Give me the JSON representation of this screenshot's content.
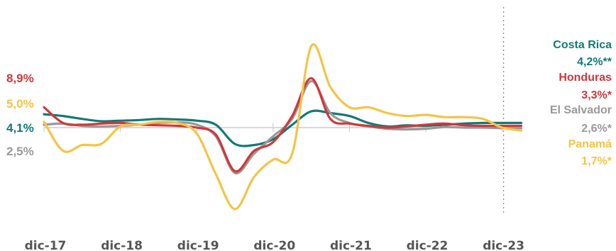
{
  "chart_data": {
    "type": "line",
    "title": "",
    "xlabel": "",
    "ylabel": "",
    "x_ticks": [
      "dic-17",
      "dic-18",
      "dic-19",
      "dic-20",
      "dic-21",
      "dic-22",
      "dic-23"
    ],
    "x_range": [
      "2017-12",
      "2024-03"
    ],
    "ylim": [
      -15,
      15
    ],
    "baseline_y": 0,
    "marker_line_x": "2023-12",
    "grid": false,
    "legend": "end-of-line labels, right",
    "series": [
      {
        "name": "Costa Rica",
        "color": "#127a76",
        "start_value": "4,1%",
        "end_value": "4,2%**",
        "points": [
          [
            "2017-12",
            2.3
          ],
          [
            "2018-03",
            2.0
          ],
          [
            "2018-06",
            1.5
          ],
          [
            "2018-09",
            1.1
          ],
          [
            "2018-12",
            1.2
          ],
          [
            "2019-03",
            1.3
          ],
          [
            "2019-06",
            1.5
          ],
          [
            "2019-09",
            1.4
          ],
          [
            "2019-12",
            1.2
          ],
          [
            "2020-03",
            0.5
          ],
          [
            "2020-06",
            -2.8
          ],
          [
            "2020-09",
            -3.0
          ],
          [
            "2020-12",
            -2.0
          ],
          [
            "2021-03",
            0.5
          ],
          [
            "2021-06",
            2.8
          ],
          [
            "2021-09",
            2.5
          ],
          [
            "2021-12",
            2.0
          ],
          [
            "2022-03",
            0.8
          ],
          [
            "2022-06",
            0.2
          ],
          [
            "2022-09",
            0.4
          ],
          [
            "2022-12",
            0.3
          ],
          [
            "2023-03",
            0.5
          ],
          [
            "2023-06",
            0.7
          ],
          [
            "2023-09",
            0.8
          ],
          [
            "2023-12",
            0.8
          ],
          [
            "2024-03",
            0.8
          ]
        ]
      },
      {
        "name": "Honduras",
        "color": "#d2363b",
        "start_value": "8,9%",
        "end_value": "3,3%*",
        "points": [
          [
            "2017-12",
            3.5
          ],
          [
            "2018-03",
            0.8
          ],
          [
            "2018-06",
            0.5
          ],
          [
            "2018-09",
            0.7
          ],
          [
            "2018-12",
            0.8
          ],
          [
            "2019-03",
            0.5
          ],
          [
            "2019-06",
            0.4
          ],
          [
            "2019-09",
            0.3
          ],
          [
            "2019-12",
            0.0
          ],
          [
            "2020-03",
            -1.2
          ],
          [
            "2020-06",
            -7.5
          ],
          [
            "2020-09",
            -4.0
          ],
          [
            "2020-12",
            -2.5
          ],
          [
            "2021-03",
            2.0
          ],
          [
            "2021-06",
            8.5
          ],
          [
            "2021-09",
            1.5
          ],
          [
            "2021-12",
            0.7
          ],
          [
            "2022-03",
            0.3
          ],
          [
            "2022-06",
            0.0
          ],
          [
            "2022-09",
            0.2
          ],
          [
            "2022-12",
            0.5
          ],
          [
            "2023-03",
            0.7
          ],
          [
            "2023-06",
            0.4
          ],
          [
            "2023-09",
            0.3
          ],
          [
            "2023-12",
            0.3
          ],
          [
            "2024-03",
            0.3
          ]
        ]
      },
      {
        "name": "El Salvador",
        "color": "#999999",
        "start_value": "2,5%",
        "end_value": "2,6%*",
        "points": [
          [
            "2017-12",
            0.5
          ],
          [
            "2018-03",
            0.7
          ],
          [
            "2018-06",
            0.3
          ],
          [
            "2018-09",
            0.2
          ],
          [
            "2018-12",
            0.3
          ],
          [
            "2019-03",
            0.5
          ],
          [
            "2019-06",
            0.8
          ],
          [
            "2019-09",
            0.9
          ],
          [
            "2019-12",
            0.5
          ],
          [
            "2020-03",
            -1.5
          ],
          [
            "2020-06",
            -7.8
          ],
          [
            "2020-09",
            -4.5
          ],
          [
            "2020-12",
            -1.5
          ],
          [
            "2021-03",
            1.5
          ],
          [
            "2021-06",
            8.0
          ],
          [
            "2021-09",
            2.5
          ],
          [
            "2021-12",
            0.8
          ],
          [
            "2022-03",
            0.2
          ],
          [
            "2022-06",
            -0.2
          ],
          [
            "2022-09",
            -0.3
          ],
          [
            "2022-12",
            -0.2
          ],
          [
            "2023-03",
            0.1
          ],
          [
            "2023-06",
            0.0
          ],
          [
            "2023-09",
            0.0
          ],
          [
            "2023-12",
            -0.1
          ],
          [
            "2024-03",
            -0.1
          ]
        ]
      },
      {
        "name": "Panamá",
        "color": "#f4c447",
        "start_value": "5,0%",
        "end_value": "1,7%*",
        "points": [
          [
            "2017-12",
            1.0
          ],
          [
            "2018-03",
            -4.0
          ],
          [
            "2018-06",
            -3.0
          ],
          [
            "2018-09",
            -2.8
          ],
          [
            "2018-12",
            0.2
          ],
          [
            "2019-03",
            0.5
          ],
          [
            "2019-06",
            1.0
          ],
          [
            "2019-09",
            0.8
          ],
          [
            "2019-12",
            -1.0
          ],
          [
            "2020-03",
            -8.0
          ],
          [
            "2020-06",
            -14.0
          ],
          [
            "2020-09",
            -8.5
          ],
          [
            "2020-12",
            -5.5
          ],
          [
            "2021-03",
            -4.5
          ],
          [
            "2021-06",
            14.0
          ],
          [
            "2021-09",
            7.0
          ],
          [
            "2021-12",
            3.5
          ],
          [
            "2022-03",
            3.5
          ],
          [
            "2022-06",
            2.5
          ],
          [
            "2022-09",
            2.0
          ],
          [
            "2022-12",
            2.2
          ],
          [
            "2023-03",
            1.8
          ],
          [
            "2023-06",
            1.8
          ],
          [
            "2023-09",
            1.5
          ],
          [
            "2023-12",
            0.0
          ],
          [
            "2024-03",
            -0.5
          ]
        ]
      }
    ]
  }
}
